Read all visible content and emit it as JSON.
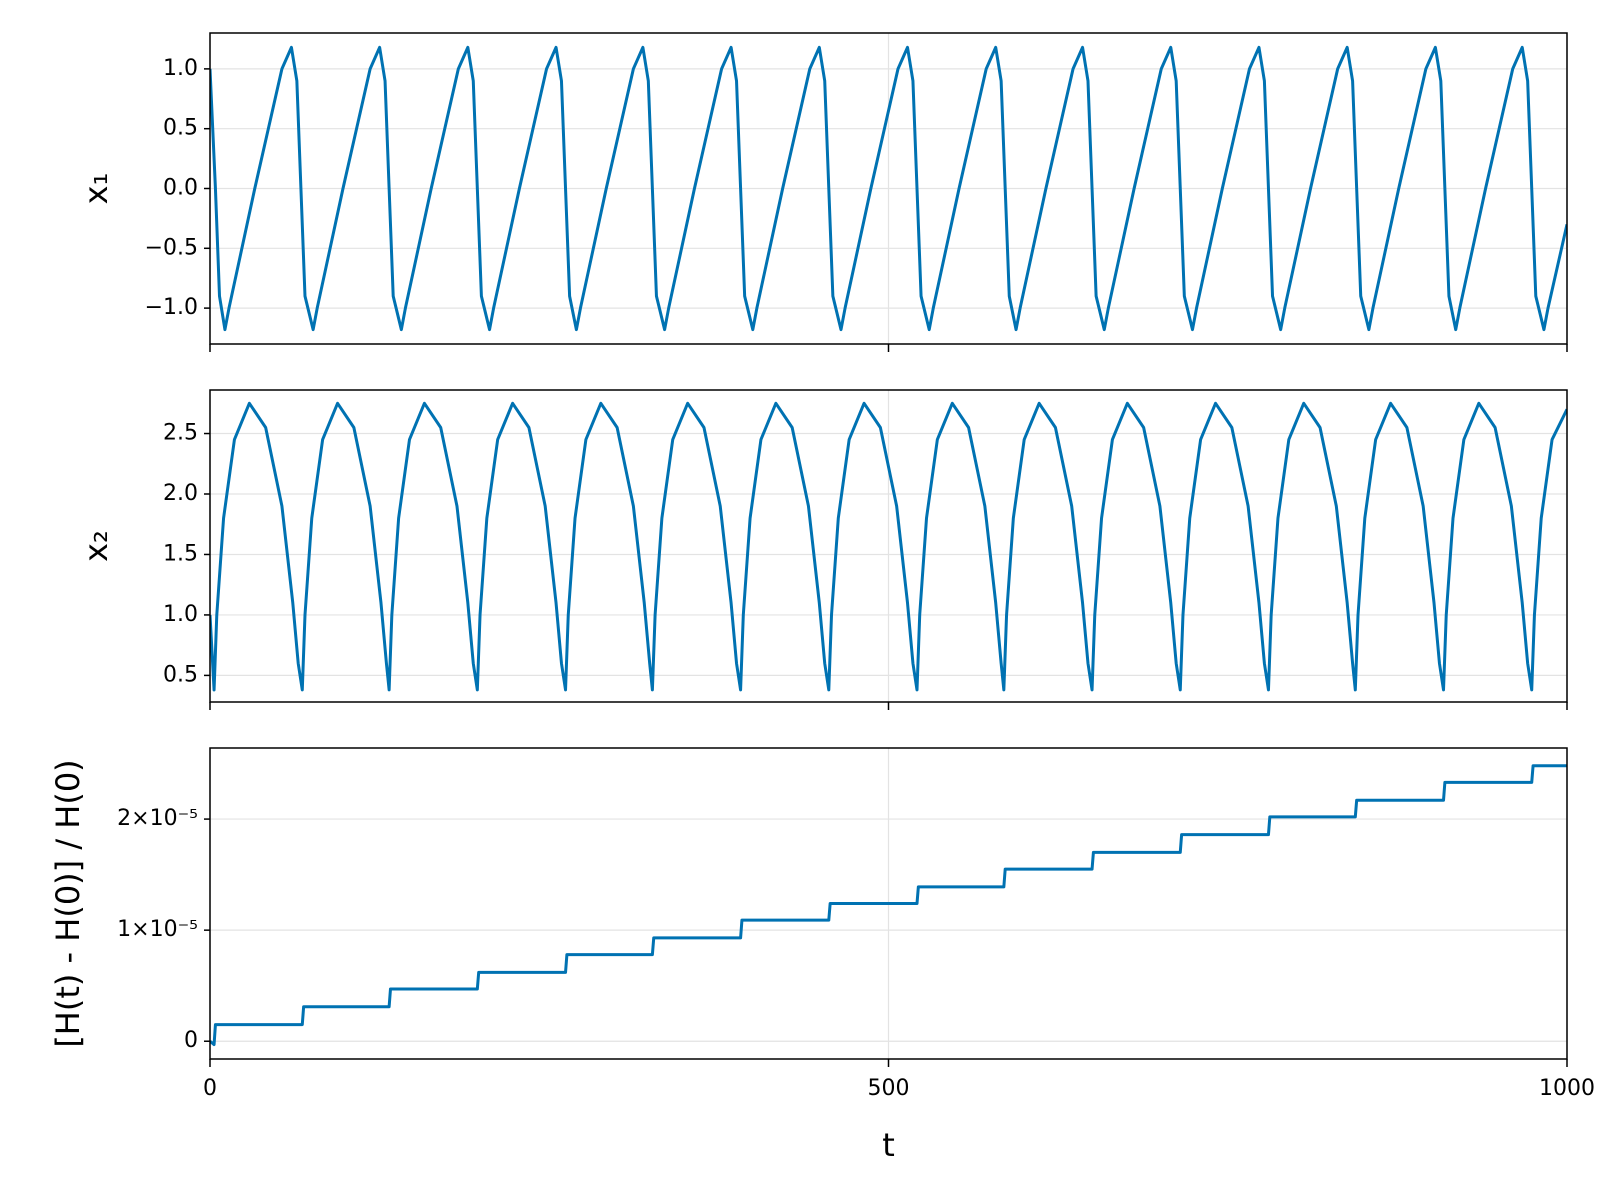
{
  "chart_data": [
    {
      "type": "line",
      "ylabel": "x₁",
      "color": "#0072b2",
      "grid": true,
      "xlim": [
        0,
        1000
      ],
      "xticks": [
        0,
        500,
        1000
      ],
      "ylim": [
        -1.3,
        1.3
      ],
      "yticks": [
        {
          "value": -1,
          "label": "−1.0"
        },
        {
          "value": -0.5,
          "label": "−0.5"
        },
        {
          "value": 0,
          "label": "0.0"
        },
        0.5,
        {
          "value": 1,
          "label": "1.0"
        }
      ],
      "x": [
        0,
        4,
        7,
        11,
        14,
        33,
        53,
        60,
        64,
        67,
        70,
        76,
        79,
        98,
        118,
        125,
        129,
        132,
        135,
        141,
        144,
        163,
        183,
        190,
        194,
        197,
        200,
        206,
        209,
        228,
        248,
        255,
        259,
        262,
        265,
        270,
        273,
        292,
        312,
        319,
        323,
        326,
        329,
        335,
        338,
        357,
        377,
        384,
        388,
        391,
        394,
        400,
        403,
        422,
        442,
        449,
        453,
        456,
        459,
        465,
        468,
        487,
        507,
        514,
        518,
        521,
        524,
        530,
        533,
        552,
        572,
        579,
        583,
        586,
        589,
        594,
        597,
        616,
        636,
        643,
        647,
        650,
        653,
        659,
        662,
        681,
        701,
        708,
        712,
        715,
        718,
        724,
        727,
        746,
        766,
        773,
        777,
        780,
        783,
        789,
        792,
        811,
        831,
        838,
        842,
        845,
        848,
        854,
        857,
        876,
        896,
        903,
        907,
        910,
        913,
        918,
        921,
        940,
        960,
        967,
        971,
        974,
        977,
        983,
        986,
        1000
      ],
      "values": [
        1.0,
        0,
        -0.9,
        -1.18,
        -1.0,
        0,
        1.0,
        1.18,
        0.9,
        0,
        -0.9,
        -1.18,
        -1.0,
        0,
        1.0,
        1.18,
        0.9,
        0,
        -0.9,
        -1.18,
        -1.0,
        0,
        1.0,
        1.18,
        0.9,
        0,
        -0.9,
        -1.18,
        -1.0,
        0,
        1.0,
        1.18,
        0.9,
        0,
        -0.9,
        -1.18,
        -1.0,
        0,
        1.0,
        1.18,
        0.9,
        0,
        -0.9,
        -1.18,
        -1.0,
        0,
        1.0,
        1.18,
        0.9,
        0,
        -0.9,
        -1.18,
        -1.0,
        0,
        1.0,
        1.18,
        0.9,
        0,
        -0.9,
        -1.18,
        -1.0,
        0,
        1.0,
        1.18,
        0.9,
        0,
        -0.9,
        -1.18,
        -1.0,
        0,
        1.0,
        1.18,
        0.9,
        0,
        -0.9,
        -1.18,
        -1.0,
        0,
        1.0,
        1.18,
        0.9,
        0,
        -0.9,
        -1.18,
        -1.0,
        0,
        1.0,
        1.18,
        0.9,
        0,
        -0.9,
        -1.18,
        -1.0,
        0,
        1.0,
        1.18,
        0.9,
        0,
        -0.9,
        -1.18,
        -1.0,
        0,
        1.0,
        1.18,
        0.9,
        0,
        -0.9,
        -1.18,
        -1.0,
        0,
        1.0,
        1.18,
        0.9,
        0,
        -0.9,
        -1.18,
        -1.0,
        0,
        1.0,
        1.18,
        0.9,
        0,
        -0.9,
        -1.18,
        -1.0,
        -0.3
      ]
    },
    {
      "type": "line",
      "ylabel": "x₂",
      "color": "#0072b2",
      "grid": true,
      "xlim": [
        0,
        1000
      ],
      "xticks": [
        0,
        500,
        1000
      ],
      "ylim": [
        0.28,
        2.86
      ],
      "yticks": [
        0.5,
        {
          "value": 1,
          "label": "1.0"
        },
        1.5,
        {
          "value": 2,
          "label": "2.0"
        },
        2.5
      ],
      "x": [
        0,
        3,
        5,
        10,
        18,
        29,
        41,
        53,
        61,
        65,
        68,
        70,
        75,
        83,
        94,
        106,
        118,
        126,
        130,
        132,
        134,
        139,
        147,
        158,
        170,
        182,
        190,
        194,
        197,
        199,
        204,
        212,
        223,
        235,
        247,
        255,
        259,
        262,
        264,
        269,
        277,
        288,
        300,
        312,
        320,
        324,
        326,
        328,
        333,
        341,
        352,
        364,
        376,
        384,
        388,
        391,
        393,
        398,
        406,
        417,
        429,
        441,
        449,
        453,
        456,
        458,
        463,
        471,
        482,
        494,
        506,
        514,
        518,
        521,
        523,
        528,
        536,
        547,
        559,
        571,
        579,
        583,
        585,
        587,
        592,
        600,
        611,
        623,
        635,
        643,
        647,
        650,
        652,
        657,
        665,
        676,
        688,
        700,
        708,
        712,
        715,
        717,
        722,
        730,
        741,
        753,
        765,
        773,
        777,
        780,
        782,
        787,
        795,
        806,
        818,
        830,
        838,
        842,
        844,
        846,
        851,
        859,
        870,
        882,
        894,
        902,
        906,
        909,
        911,
        916,
        924,
        935,
        947,
        959,
        967,
        971,
        974,
        976,
        981,
        989,
        1000
      ],
      "values": [
        1.0,
        0.38,
        1.0,
        1.8,
        2.45,
        2.75,
        2.55,
        1.9,
        1.1,
        0.6,
        0.38,
        1.0,
        1.8,
        2.45,
        2.75,
        2.55,
        1.9,
        1.1,
        0.6,
        0.38,
        1.0,
        1.8,
        2.45,
        2.75,
        2.55,
        1.9,
        1.1,
        0.6,
        0.38,
        1.0,
        1.8,
        2.45,
        2.75,
        2.55,
        1.9,
        1.1,
        0.6,
        0.38,
        1.0,
        1.8,
        2.45,
        2.75,
        2.55,
        1.9,
        1.1,
        0.6,
        0.38,
        1.0,
        1.8,
        2.45,
        2.75,
        2.55,
        1.9,
        1.1,
        0.6,
        0.38,
        1.0,
        1.8,
        2.45,
        2.75,
        2.55,
        1.9,
        1.1,
        0.6,
        0.38,
        1.0,
        1.8,
        2.45,
        2.75,
        2.55,
        1.9,
        1.1,
        0.6,
        0.38,
        1.0,
        1.8,
        2.45,
        2.75,
        2.55,
        1.9,
        1.1,
        0.6,
        0.38,
        1.0,
        1.8,
        2.45,
        2.75,
        2.55,
        1.9,
        1.1,
        0.6,
        0.38,
        1.0,
        1.8,
        2.45,
        2.75,
        2.55,
        1.9,
        1.1,
        0.6,
        0.38,
        1.0,
        1.8,
        2.45,
        2.75,
        2.55,
        1.9,
        1.1,
        0.6,
        0.38,
        1.0,
        1.8,
        2.45,
        2.75,
        2.55,
        1.9,
        1.1,
        0.6,
        0.38,
        1.0,
        1.8,
        2.45,
        2.75,
        2.55,
        1.9,
        1.1,
        0.6,
        0.38,
        1.0,
        1.8,
        2.45,
        2.75,
        2.55,
        1.9,
        1.1,
        0.6,
        0.38,
        1.0,
        1.8,
        2.45,
        2.7
      ]
    },
    {
      "type": "line",
      "ylabel": "[H(t) - H(0)] / H(0)",
      "xlabel": "t",
      "color": "#0072b2",
      "grid": true,
      "xlim": [
        0,
        1000
      ],
      "xticks": [
        0,
        500,
        1000
      ],
      "ylim": [
        -1.6e-06,
        2.64e-05
      ],
      "yticks": [
        0,
        {
          "value": 1e-05,
          "label": "1×10⁻⁵"
        },
        {
          "value": 2e-05,
          "label": "2×10⁻⁵"
        }
      ],
      "x": [
        0,
        3,
        4,
        68,
        69,
        132,
        133,
        197,
        198,
        262,
        263,
        326,
        327,
        391,
        392,
        456,
        457,
        521,
        522,
        585,
        586,
        650,
        651,
        715,
        716,
        780,
        781,
        844,
        845,
        909,
        910,
        974,
        975,
        1000
      ],
      "values": [
        0,
        -3e-07,
        1.5e-06,
        1.5e-06,
        3.1e-06,
        3.1e-06,
        4.7e-06,
        4.7e-06,
        6.2e-06,
        6.2e-06,
        7.8e-06,
        7.8e-06,
        9.3e-06,
        9.3e-06,
        1.09e-05,
        1.09e-05,
        1.24e-05,
        1.24e-05,
        1.39e-05,
        1.39e-05,
        1.55e-05,
        1.55e-05,
        1.7e-05,
        1.7e-05,
        1.86e-05,
        1.86e-05,
        2.02e-05,
        2.02e-05,
        2.17e-05,
        2.17e-05,
        2.33e-05,
        2.33e-05,
        2.48e-05,
        2.48e-05
      ]
    }
  ]
}
